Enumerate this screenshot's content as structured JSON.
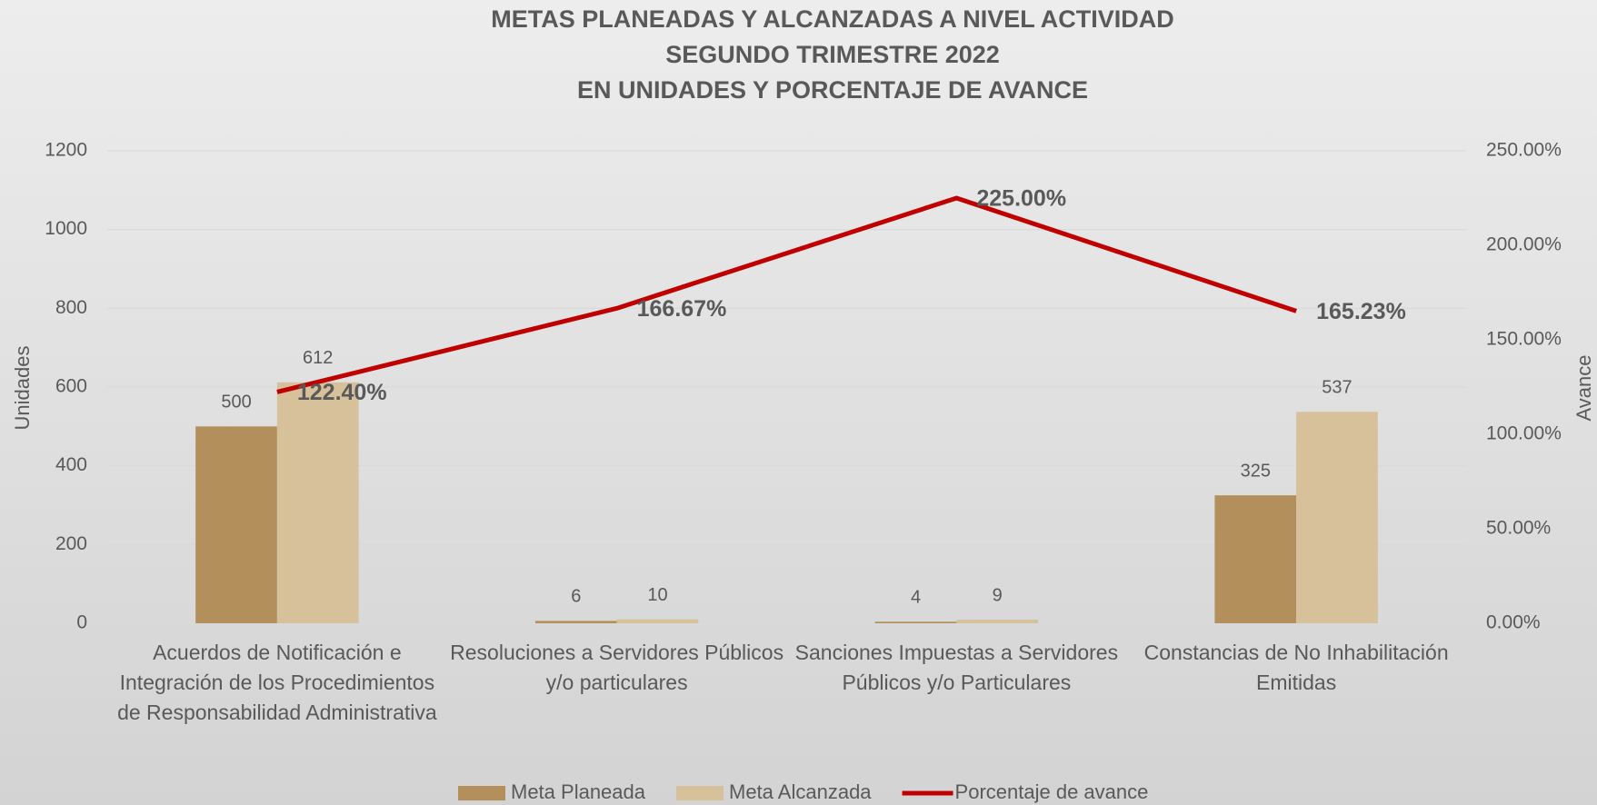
{
  "chart_data": {
    "type": "bar",
    "title": [
      "METAS PLANEADAS Y ALCANZADAS A NIVEL ACTIVIDAD",
      "SEGUNDO TRIMESTRE 2022",
      "EN UNIDADES Y PORCENTAJE DE AVANCE"
    ],
    "y_label": "Unidades",
    "y2_label": "Avance",
    "categories": [
      "Acuerdos de Notificación e Integración de los Procedimientos de Responsabilidad Administrativa",
      "Resoluciones a Servidores Públicos y/o particulares",
      "Sanciones Impuestas a Servidores Públicos y/o Particulares",
      "Constancias de No Inhabilitación Emitidas"
    ],
    "series": [
      {
        "name": "Meta Planeada",
        "color": "#b38f5c",
        "values": [
          500,
          6,
          4,
          325
        ]
      },
      {
        "name": "Meta Alcanzada",
        "color": "#d6c19a",
        "values": [
          612,
          10,
          9,
          537
        ]
      },
      {
        "name": "Porcentaje de avance",
        "color": "#c00000",
        "type": "line",
        "axis": "y2",
        "values": [
          122.4,
          166.67,
          225,
          165.23
        ],
        "value_labels": [
          "122.40%",
          "166.67%",
          "225.00%",
          "165.23%"
        ]
      }
    ],
    "ylim": [
      0,
      1200
    ],
    "yticks": [
      0,
      200,
      400,
      600,
      800,
      1000,
      1200
    ],
    "y2lim": [
      0,
      250
    ],
    "y2ticks": [
      {
        "value": 0,
        "label": "0.00%"
      },
      {
        "value": 50,
        "label": "50.00%"
      },
      {
        "value": 100,
        "label": "100.00%"
      },
      {
        "value": 150,
        "label": "150.00%"
      },
      {
        "value": 200,
        "label": "200.00%"
      },
      {
        "value": 250,
        "label": "250.00%"
      }
    ],
    "grid": true,
    "legend": "bottom"
  }
}
